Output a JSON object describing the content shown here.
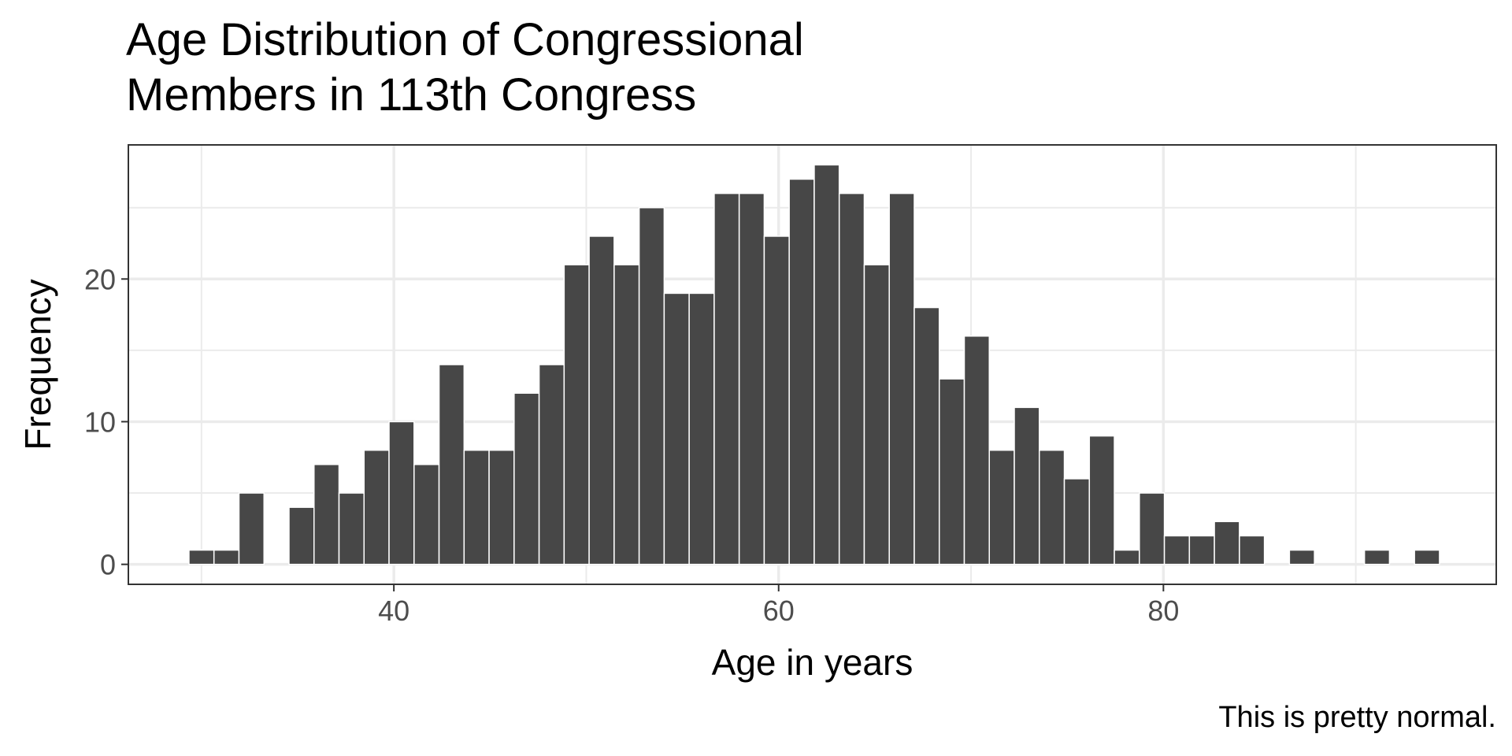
{
  "chart_data": {
    "type": "bar",
    "title": [
      "Age Distribution of Congressional",
      "Members in 113th Congress"
    ],
    "xlabel": "Age in years",
    "ylabel": "Frequency",
    "caption": "This is pretty normal.",
    "bin_width": 1.3,
    "x": [
      30.0,
      31.3,
      32.6,
      33.9,
      35.2,
      36.5,
      37.8,
      39.1,
      40.4,
      41.7,
      43.0,
      44.3,
      45.6,
      46.9,
      48.2,
      49.5,
      50.8,
      52.1,
      53.4,
      54.7,
      56.0,
      57.3,
      58.6,
      59.9,
      61.2,
      62.5,
      63.8,
      65.1,
      66.4,
      67.7,
      69.0,
      70.3,
      71.6,
      72.9,
      74.2,
      75.5,
      76.8,
      78.1,
      79.4,
      80.7,
      82.0,
      83.3,
      84.6,
      85.9,
      87.2,
      88.5,
      89.8,
      91.1,
      92.4,
      93.7
    ],
    "values": [
      1,
      1,
      5,
      0,
      4,
      7,
      5,
      8,
      10,
      7,
      14,
      8,
      8,
      12,
      14,
      21,
      23,
      21,
      25,
      19,
      19,
      26,
      26,
      23,
      27,
      28,
      26,
      21,
      26,
      18,
      13,
      16,
      8,
      11,
      8,
      6,
      9,
      1,
      5,
      2,
      2,
      3,
      2,
      0,
      1,
      0,
      0,
      1,
      0,
      1
    ],
    "xlim": [
      26.2,
      97.3
    ],
    "ylim": [
      -1.4,
      29.4
    ],
    "x_ticks": [
      40,
      60,
      80
    ],
    "x_tick_labels": [
      "40",
      "60",
      "80"
    ],
    "y_ticks": [
      0,
      10,
      20
    ],
    "y_tick_labels": [
      "0",
      "10",
      "20"
    ],
    "grid": true,
    "colors": {
      "bar": "#474747",
      "bar_outline": "#ffffff",
      "grid": "#ebebeb",
      "panel_border": "#333333"
    }
  }
}
